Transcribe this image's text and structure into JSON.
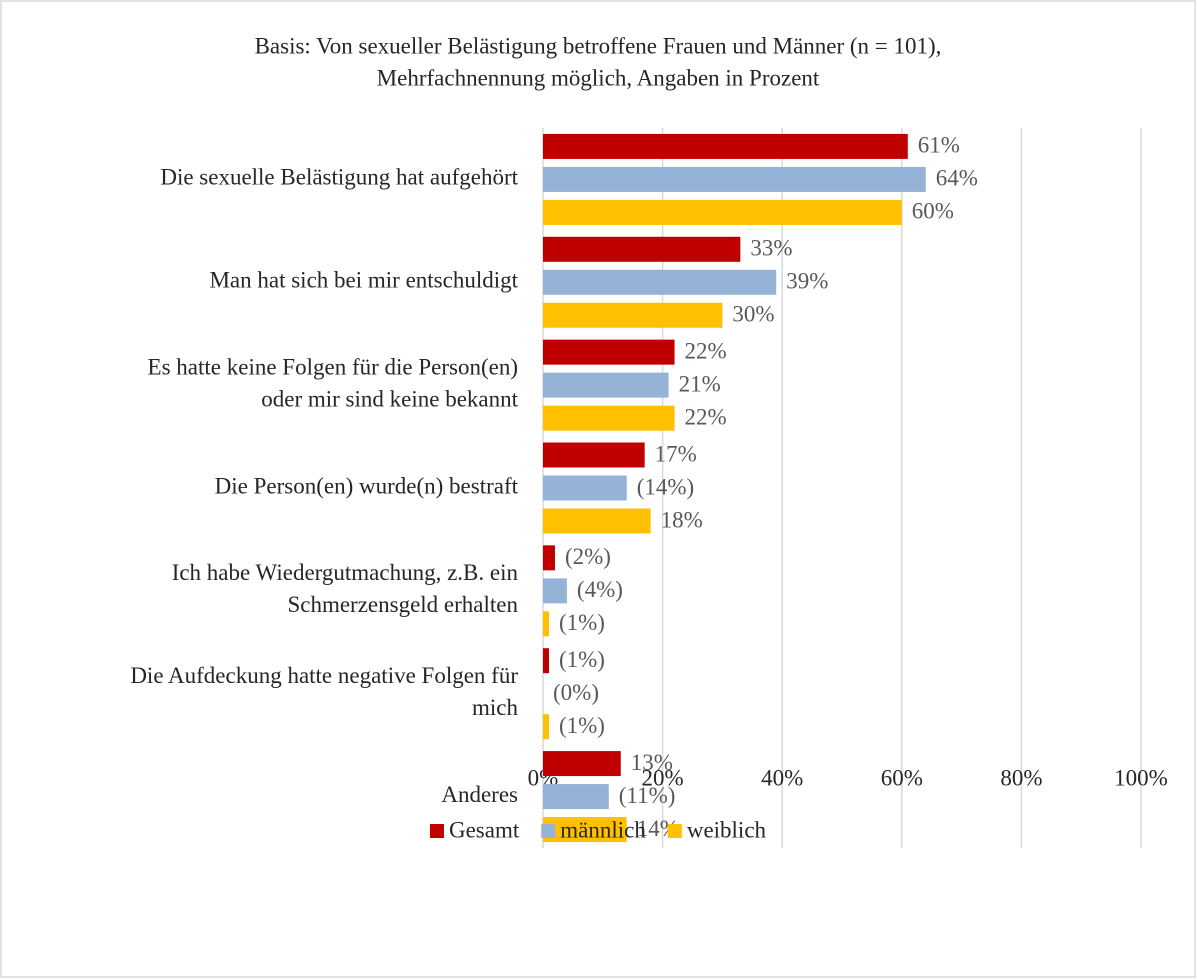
{
  "chart_data": {
    "type": "barh",
    "title": [
      "Basis: Von sexueller Belästigung betroffene Frauen und Männer (n = 101),",
      "Mehrfachnennung möglich, Angaben in Prozent"
    ],
    "categories": [
      [
        "Die sexuelle Belästigung hat aufgehört"
      ],
      [
        "Man hat sich bei mir entschuldigt"
      ],
      [
        "Es hatte keine Folgen für die Person(en)",
        "oder mir sind keine bekannt"
      ],
      [
        "Die Person(en) wurde(n) bestraft"
      ],
      [
        "Ich habe Wiedergutmachung, z.B. ein",
        "Schmerzensgeld erhalten"
      ],
      [
        "Die Aufdeckung hatte negative Folgen für",
        "mich"
      ],
      [
        "Anderes"
      ]
    ],
    "series": [
      {
        "name": "Gesamt",
        "color": "#c00000",
        "values": [
          61,
          33,
          22,
          17,
          2,
          1,
          13
        ],
        "value_labels": [
          "61%",
          "33%",
          "22%",
          "17%",
          "(2%)",
          "(1%)",
          "13%"
        ]
      },
      {
        "name": "männlich",
        "color": "#95b3d7",
        "values": [
          64,
          39,
          21,
          14,
          4,
          0,
          11
        ],
        "value_labels": [
          "64%",
          "39%",
          "21%",
          "(14%)",
          "(4%)",
          "(0%)",
          "(11%)"
        ]
      },
      {
        "name": "weiblich",
        "color": "#ffc000",
        "values": [
          60,
          30,
          22,
          18,
          1,
          1,
          14
        ],
        "value_labels": [
          "60%",
          "30%",
          "22%",
          "18%",
          "(1%)",
          "(1%)",
          "14%"
        ]
      }
    ],
    "xlim": [
      0,
      100
    ],
    "xticks": [
      {
        "value": 0,
        "label": "0%"
      },
      {
        "value": 20,
        "label": "20%"
      },
      {
        "value": 40,
        "label": "40%"
      },
      {
        "value": 60,
        "label": "60%"
      },
      {
        "value": 80,
        "label": "80%"
      },
      {
        "value": 100,
        "label": "100%"
      }
    ],
    "grid": true,
    "legend": "bottom"
  }
}
